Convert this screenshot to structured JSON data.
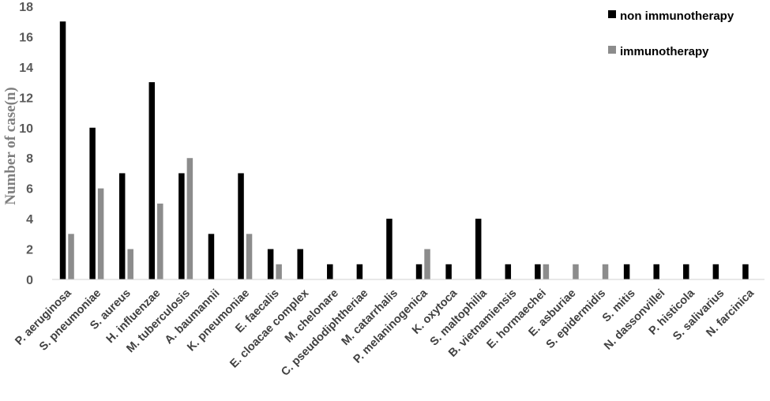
{
  "chart_data": {
    "type": "bar",
    "categories": [
      "P. aeruginosa",
      "S. pneumoniae",
      "S. aureus",
      "H. influenzae",
      "M. tuberculosis",
      "A. baumannii",
      "K. pneumoniae",
      "E. faecalis",
      "E. cloacae complex",
      "M. chelonare",
      "C. pseudodiphtheriae",
      "M. catarrhalis",
      "P. melaninogenica",
      "K. oxytoca",
      "S. maltophilia",
      "B. vietnamiensis",
      "E. hormaechei",
      "E. asburiae",
      "S. epidermidis",
      "S. mitis",
      "N. dassonvillei",
      "P. histicola",
      "S. salivarius",
      "N. farcinica"
    ],
    "series": [
      {
        "name": "non immunotherapy",
        "color": "#000000",
        "values": [
          17,
          10,
          7,
          13,
          7,
          3,
          7,
          2,
          2,
          1,
          1,
          4,
          1,
          1,
          4,
          1,
          1,
          0,
          0,
          1,
          1,
          1,
          1,
          1
        ]
      },
      {
        "name": "immunotherapy",
        "color": "#8c8c8c",
        "values": [
          3,
          6,
          2,
          5,
          8,
          0,
          3,
          1,
          0,
          0,
          0,
          0,
          2,
          0,
          0,
          0,
          1,
          1,
          1,
          0,
          0,
          0,
          0,
          0
        ]
      }
    ],
    "xlabel": "",
    "ylabel": "Number of case(n)",
    "ylim": [
      0,
      18
    ],
    "yticks": [
      "0",
      "2",
      "4",
      "6",
      "8",
      "10",
      "12",
      "14",
      "16",
      "18"
    ],
    "grid": false,
    "legend": "top-right"
  }
}
